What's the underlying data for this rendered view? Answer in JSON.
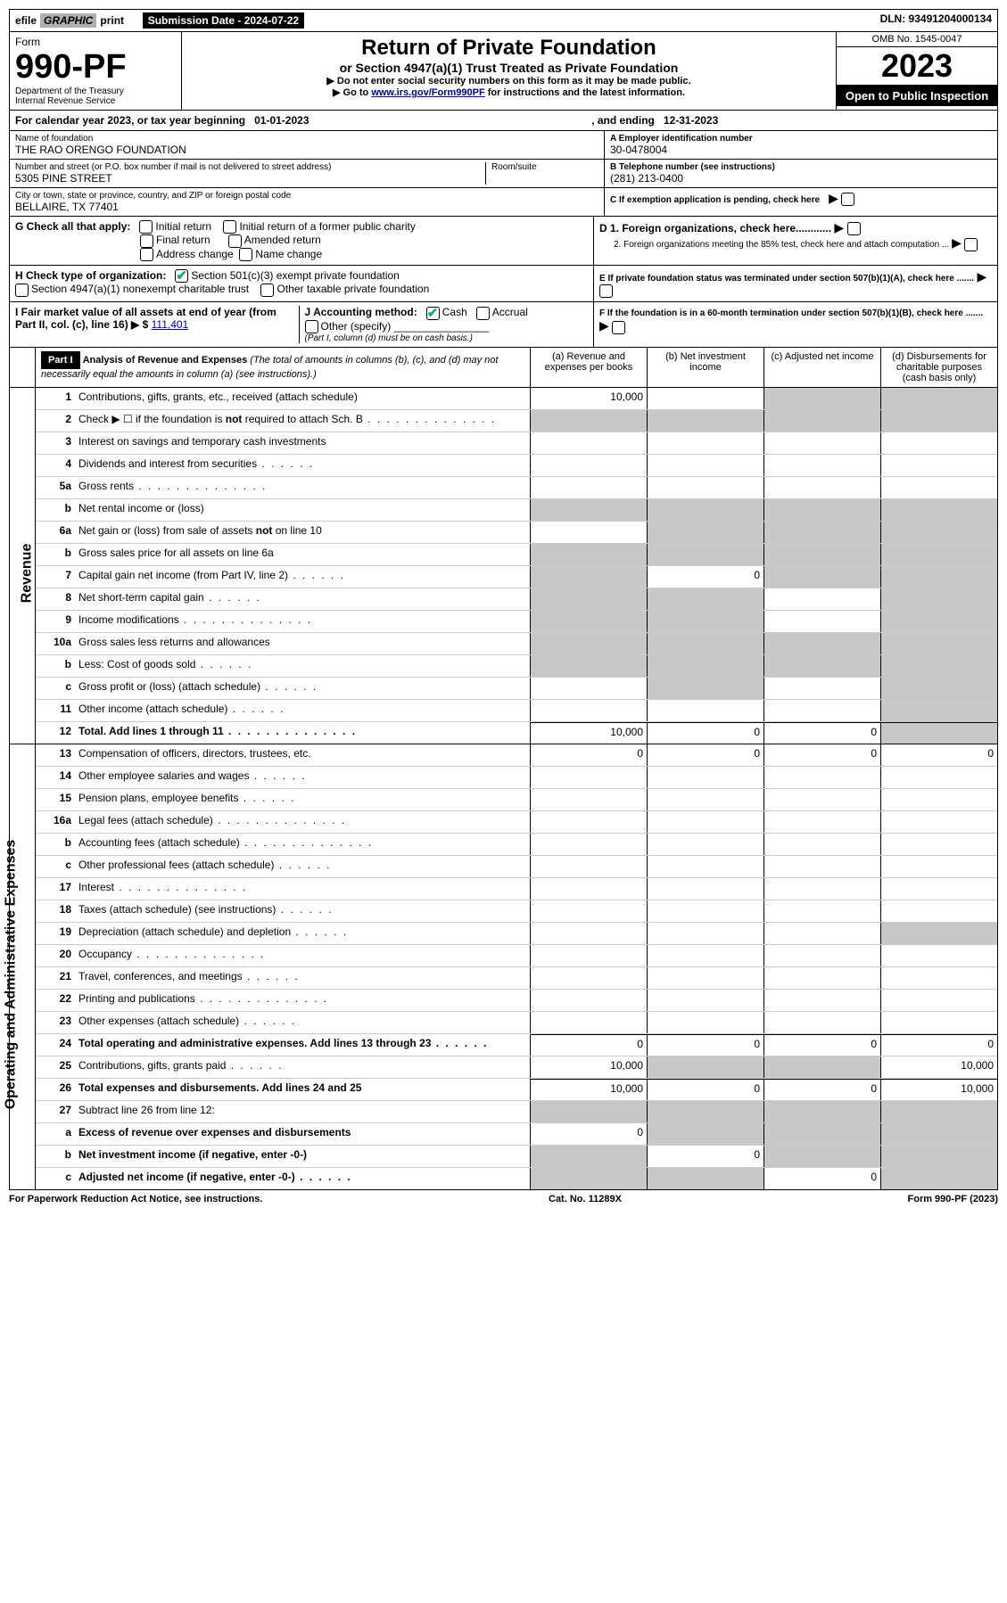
{
  "topbar": {
    "efile": "efile",
    "graphic": "GRAPHIC",
    "print": "print",
    "sub_label": "Submission Date - 2024-07-22",
    "dln": "DLN: 93491204000134"
  },
  "header": {
    "form_label_top": "Form",
    "form_num": "990-PF",
    "dept": "Department of the Treasury",
    "irs": "Internal Revenue Service",
    "title": "Return of Private Foundation",
    "subtitle": "or Section 4947(a)(1) Trust Treated as Private Foundation",
    "instr1": "▶ Do not enter social security numbers on this form as it may be made public.",
    "instr2_pre": "▶ Go to ",
    "instr2_link": "www.irs.gov/Form990PF",
    "instr2_post": " for instructions and the latest information.",
    "omb": "OMB No. 1545-0047",
    "year": "2023",
    "open_pub": "Open to Public Inspection"
  },
  "cal": {
    "pre": "For calendar year 2023, or tax year beginning ",
    "begin": "01-01-2023",
    "mid": ", and ending ",
    "end": "12-31-2023"
  },
  "entity": {
    "name_label": "Name of foundation",
    "name": "THE RAO ORENGO FOUNDATION",
    "addr_label": "Number and street (or P.O. box number if mail is not delivered to street address)",
    "addr": "5305 PINE STREET",
    "room_label": "Room/suite",
    "city_label": "City or town, state or province, country, and ZIP or foreign postal code",
    "city": "BELLAIRE, TX  77401",
    "ein_label": "A Employer identification number",
    "ein": "30-0478004",
    "phone_label": "B Telephone number (see instructions)",
    "phone": "(281) 213-0400",
    "c_label": "C If exemption application is pending, check here"
  },
  "checks": {
    "g_label": "G Check all that apply:",
    "g1": "Initial return",
    "g2": "Initial return of a former public charity",
    "g3": "Final return",
    "g4": "Amended return",
    "g5": "Address change",
    "g6": "Name change",
    "h_label": "H Check type of organization:",
    "h1": "Section 501(c)(3) exempt private foundation",
    "h2": "Section 4947(a)(1) nonexempt charitable trust",
    "h3": "Other taxable private foundation",
    "i_label": "I Fair market value of all assets at end of year (from Part II, col. (c), line 16) ▶ $",
    "i_val": "111,401",
    "j_label": "J Accounting method:",
    "j1": "Cash",
    "j2": "Accrual",
    "j3": "Other (specify)",
    "j_note": "(Part I, column (d) must be on cash basis.)",
    "d_label": "D 1. Foreign organizations, check here............",
    "d2_label": "2. Foreign organizations meeting the 85% test, check here and attach computation ...",
    "e_label": "E  If private foundation status was terminated under section 507(b)(1)(A), check here .......",
    "f_label": "F  If the foundation is in a 60-month termination under section 507(b)(1)(B), check here ......."
  },
  "part1": {
    "label": "Part I",
    "desc_title": "Analysis of Revenue and Expenses",
    "desc_note": " (The total of amounts in columns (b), (c), and (d) may not necessarily equal the amounts in column (a) (see instructions).)",
    "col_a": "(a)  Revenue and expenses per books",
    "col_b": "(b)  Net investment income",
    "col_c": "(c)  Adjusted net income",
    "col_d": "(d)  Disbursements for charitable purposes (cash basis only)",
    "rev_tab": "Revenue",
    "exp_tab": "Operating and Administrative Expenses"
  },
  "lines": {
    "l1": {
      "n": "1",
      "d": "Contributions, gifts, grants, etc., received (attach schedule)",
      "a": "10,000",
      "bs": false,
      "cs": true,
      "ds": true
    },
    "l2": {
      "n": "2",
      "d": "Check ▶ ☐ if the foundation is not required to attach Sch. B",
      "dots": true,
      "as": true,
      "bs": true,
      "cs": true,
      "ds": true,
      "asolid": false
    },
    "l3": {
      "n": "3",
      "d": "Interest on savings and temporary cash investments"
    },
    "l4": {
      "n": "4",
      "d": "Dividends and interest from securities",
      "dots_sm": true
    },
    "l5a": {
      "n": "5a",
      "d": "Gross rents",
      "dots": true
    },
    "l5b": {
      "n": "b",
      "d": "Net rental income or (loss)",
      "bs": true,
      "cs": true,
      "ds": true,
      "asolid": false,
      "as": true
    },
    "l6a": {
      "n": "6a",
      "d": "Net gain or (loss) from sale of assets not on line 10",
      "bs": true,
      "cs": true,
      "ds": true
    },
    "l6b": {
      "n": "b",
      "d": "Gross sales price for all assets on line 6a",
      "bs": true,
      "cs": true,
      "ds": true,
      "asolid": false,
      "as": true
    },
    "l7": {
      "n": "7",
      "d": "Capital gain net income (from Part IV, line 2)",
      "dots_sm": true,
      "as": true,
      "b": "0",
      "cs": true,
      "ds": true
    },
    "l8": {
      "n": "8",
      "d": "Net short-term capital gain",
      "dots_sm": true,
      "as": true,
      "bs": true,
      "ds": true
    },
    "l9": {
      "n": "9",
      "d": "Income modifications",
      "dots": true,
      "as": true,
      "bs": true,
      "ds": true
    },
    "l10a": {
      "n": "10a",
      "d": "Gross sales less returns and allowances",
      "as": true,
      "bs": true,
      "cs": true,
      "ds": true
    },
    "l10b": {
      "n": "b",
      "d": "Less: Cost of goods sold",
      "dots_sm": true,
      "as": true,
      "bs": true,
      "cs": true,
      "ds": true
    },
    "l10c": {
      "n": "c",
      "d": "Gross profit or (loss) (attach schedule)",
      "dots_sm": true,
      "bs": true,
      "ds": true
    },
    "l11": {
      "n": "11",
      "d": "Other income (attach schedule)",
      "dots_sm": true,
      "ds": true
    },
    "l12": {
      "n": "12",
      "d": "Total. Add lines 1 through 11",
      "dots": true,
      "bold": true,
      "a": "10,000",
      "b": "0",
      "c": "0",
      "ds": true,
      "bt": true
    },
    "l13": {
      "n": "13",
      "d": "Compensation of officers, directors, trustees, etc.",
      "a": "0",
      "b": "0",
      "c": "0",
      "dv": "0"
    },
    "l14": {
      "n": "14",
      "d": "Other employee salaries and wages",
      "dots_sm": true
    },
    "l15": {
      "n": "15",
      "d": "Pension plans, employee benefits",
      "dots_sm": true
    },
    "l16a": {
      "n": "16a",
      "d": "Legal fees (attach schedule)",
      "dots": true
    },
    "l16b": {
      "n": "b",
      "d": "Accounting fees (attach schedule)",
      "dots": true
    },
    "l16c": {
      "n": "c",
      "d": "Other professional fees (attach schedule)",
      "dots_sm": true
    },
    "l17": {
      "n": "17",
      "d": "Interest",
      "dots": true
    },
    "l18": {
      "n": "18",
      "d": "Taxes (attach schedule) (see instructions)",
      "dots_sm": true
    },
    "l19": {
      "n": "19",
      "d": "Depreciation (attach schedule) and depletion",
      "dots_sm": true,
      "ds": true
    },
    "l20": {
      "n": "20",
      "d": "Occupancy",
      "dots": true
    },
    "l21": {
      "n": "21",
      "d": "Travel, conferences, and meetings",
      "dots_sm": true
    },
    "l22": {
      "n": "22",
      "d": "Printing and publications",
      "dots": true
    },
    "l23": {
      "n": "23",
      "d": "Other expenses (attach schedule)",
      "dots_sm": true
    },
    "l24": {
      "n": "24",
      "d": "Total operating and administrative expenses. Add lines 13 through 23",
      "dots_sm": true,
      "bold": true,
      "a": "0",
      "b": "0",
      "c": "0",
      "dv": "0",
      "bt": true
    },
    "l25": {
      "n": "25",
      "d": "Contributions, gifts, grants paid",
      "dots_sm": true,
      "a": "10,000",
      "bs": true,
      "cs": true,
      "dv": "10,000"
    },
    "l26": {
      "n": "26",
      "d": "Total expenses and disbursements. Add lines 24 and 25",
      "bold": true,
      "a": "10,000",
      "b": "0",
      "c": "0",
      "dv": "10,000",
      "bt": true
    },
    "l27": {
      "n": "27",
      "d": "Subtract line 26 from line 12:",
      "as": true,
      "bs": true,
      "cs": true,
      "ds": true
    },
    "l27a": {
      "n": "a",
      "d": "Excess of revenue over expenses and disbursements",
      "bold": true,
      "a": "0",
      "bs": true,
      "cs": true,
      "ds": true
    },
    "l27b": {
      "n": "b",
      "d": "Net investment income (if negative, enter -0-)",
      "bold": true,
      "as": true,
      "b": "0",
      "cs": true,
      "ds": true
    },
    "l27c": {
      "n": "c",
      "d": "Adjusted net income (if negative, enter -0-)",
      "dots_sm": true,
      "bold": true,
      "as": true,
      "bs": true,
      "c": "0",
      "ds": true
    }
  },
  "footer": {
    "left": "For Paperwork Reduction Act Notice, see instructions.",
    "mid": "Cat. No. 11289X",
    "right": "Form 990-PF (2023)"
  }
}
